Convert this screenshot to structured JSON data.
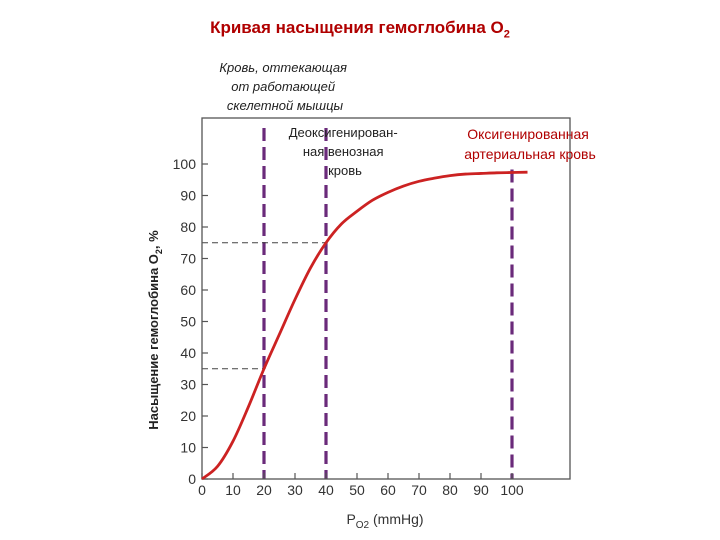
{
  "title": {
    "text": "Кривая насыщения гемоглобина O",
    "sub": "2"
  },
  "annotations": {
    "working_muscle": [
      "Кровь, оттекающая",
      "от работающей",
      "скелетной мышцы"
    ],
    "venous": [
      "Деоксигенирован-",
      "ная венозная",
      "кровь"
    ],
    "arterial": [
      "Оксигенированная",
      "артериальная кровь"
    ]
  },
  "chart_data": {
    "type": "line",
    "title": "Кривая насыщения гемоглобина O2",
    "xlabel": "PO2 (mmHg)",
    "xlabel_main": "P",
    "xlabel_sub": "O2",
    "xlabel_rest": " (mmHg)",
    "ylabel": "Насыщение гемоглобина O2, %",
    "ylabel_main": "Насыщение гемоглобина O",
    "ylabel_sub": "2",
    "ylabel_rest": ", %",
    "xlim": [
      0,
      120
    ],
    "ylim": [
      0,
      100
    ],
    "xticks": [
      0,
      10,
      20,
      30,
      40,
      50,
      60,
      70,
      80,
      90,
      100
    ],
    "yticks": [
      0,
      10,
      20,
      30,
      40,
      50,
      60,
      70,
      80,
      90,
      100
    ],
    "series": [
      {
        "color": "#cc2222",
        "x": [
          0,
          5,
          10,
          15,
          20,
          25,
          30,
          35,
          40,
          45,
          50,
          55,
          60,
          65,
          70,
          75,
          80,
          85,
          90,
          95,
          100,
          105
        ],
        "y": [
          0,
          4,
          12,
          23,
          35,
          46,
          57,
          67,
          75,
          81,
          85,
          88.5,
          91,
          93,
          94.5,
          95.5,
          96.3,
          96.8,
          97,
          97.2,
          97.3,
          97.4
        ]
      }
    ],
    "markers": [
      {
        "x": 20,
        "y": 35,
        "color": "#6a2a7a"
      },
      {
        "x": 40,
        "y": 75,
        "color": "#6a2a7a"
      },
      {
        "x": 100,
        "y": 97,
        "color": "#6a2a7a"
      }
    ]
  }
}
